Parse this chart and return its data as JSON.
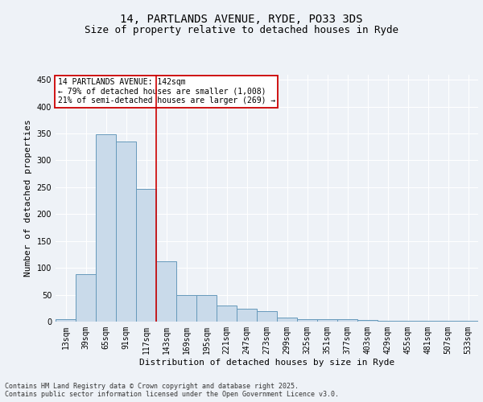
{
  "title_line1": "14, PARTLANDS AVENUE, RYDE, PO33 3DS",
  "title_line2": "Size of property relative to detached houses in Ryde",
  "xlabel": "Distribution of detached houses by size in Ryde",
  "ylabel": "Number of detached properties",
  "categories": [
    "13sqm",
    "39sqm",
    "65sqm",
    "91sqm",
    "117sqm",
    "143sqm",
    "169sqm",
    "195sqm",
    "221sqm",
    "247sqm",
    "273sqm",
    "299sqm",
    "325sqm",
    "351sqm",
    "377sqm",
    "403sqm",
    "429sqm",
    "455sqm",
    "481sqm",
    "507sqm",
    "533sqm"
  ],
  "values": [
    5,
    88,
    348,
    335,
    247,
    112,
    49,
    49,
    30,
    24,
    19,
    8,
    5,
    5,
    4,
    3,
    2,
    1,
    1,
    1,
    1
  ],
  "bar_color": "#c9daea",
  "bar_edge_color": "#6699bb",
  "vline_x_index": 5,
  "vline_color": "#cc0000",
  "annotation_text": "14 PARTLANDS AVENUE: 142sqm\n← 79% of detached houses are smaller (1,008)\n21% of semi-detached houses are larger (269) →",
  "annotation_box_color": "white",
  "annotation_box_edge_color": "#cc0000",
  "ylim": [
    0,
    460
  ],
  "yticks": [
    0,
    50,
    100,
    150,
    200,
    250,
    300,
    350,
    400,
    450
  ],
  "footer_text": "Contains HM Land Registry data © Crown copyright and database right 2025.\nContains public sector information licensed under the Open Government Licence v3.0.",
  "background_color": "#eef2f7",
  "plot_background_color": "#eef2f7",
  "title_fontsize": 10,
  "subtitle_fontsize": 9,
  "ylabel_fontsize": 8,
  "xlabel_fontsize": 8,
  "tick_fontsize": 7,
  "footer_fontsize": 6,
  "ann_fontsize": 7
}
